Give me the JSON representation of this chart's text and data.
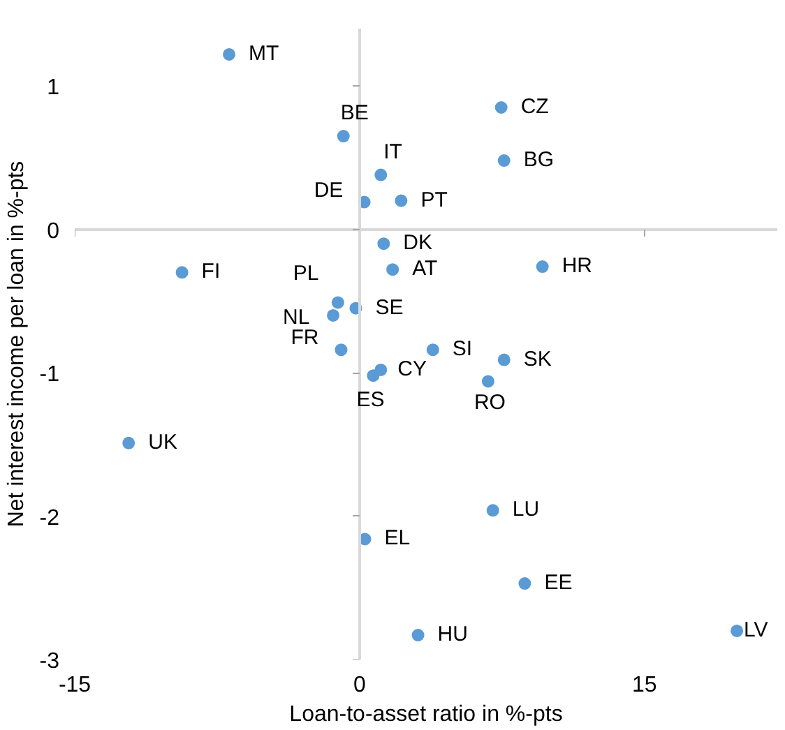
{
  "chart_data": {
    "type": "scatter",
    "xlabel": "Loan-to-asset ratio in %-pts",
    "ylabel": "Net interest income per loan in %-pts",
    "xlim": [
      -15,
      22
    ],
    "ylim": [
      -3,
      1.4
    ],
    "xticks": [
      -15,
      0,
      15
    ],
    "yticks": [
      -3,
      -2,
      -1,
      0,
      1
    ],
    "marker": "circle",
    "series": [
      {
        "color": "#5b9bd5",
        "x": [
          -6.87,
          -0.85,
          7.46,
          1.12,
          7.61,
          0.25,
          2.19,
          1.27,
          -9.35,
          1.74,
          9.63,
          -1.14,
          -1.39,
          -0.2,
          -0.97,
          3.86,
          7.61,
          1.12,
          0.72,
          6.77,
          -12.16,
          7.02,
          0.28,
          8.7,
          3.08,
          19.87
        ],
        "values": [
          1.22,
          0.65,
          0.85,
          0.38,
          0.48,
          0.19,
          0.2,
          -0.1,
          -0.3,
          -0.28,
          -0.26,
          -0.51,
          -0.6,
          -0.55,
          -0.84,
          -0.84,
          -0.91,
          -0.98,
          -1.02,
          -1.06,
          -1.49,
          -1.96,
          -2.16,
          -2.47,
          -2.83,
          -2.8
        ]
      }
    ],
    "annotations": [
      {
        "text": "MT",
        "x": -6.87,
        "y": 1.22
      },
      {
        "text": "BE",
        "x": -0.85,
        "y": 0.65
      },
      {
        "text": "CZ",
        "x": 7.46,
        "y": 0.85
      },
      {
        "text": "IT",
        "x": 1.12,
        "y": 0.38
      },
      {
        "text": "BG",
        "x": 7.61,
        "y": 0.48
      },
      {
        "text": "DE",
        "x": 0.25,
        "y": 0.19
      },
      {
        "text": "PT",
        "x": 2.19,
        "y": 0.2
      },
      {
        "text": "DK",
        "x": 1.27,
        "y": -0.1
      },
      {
        "text": "FI",
        "x": -9.35,
        "y": -0.3
      },
      {
        "text": "AT",
        "x": 1.74,
        "y": -0.28
      },
      {
        "text": "HR",
        "x": 9.63,
        "y": -0.26
      },
      {
        "text": "PL",
        "x": -1.14,
        "y": -0.51
      },
      {
        "text": "NL",
        "x": -1.39,
        "y": -0.6
      },
      {
        "text": "SE",
        "x": -0.2,
        "y": -0.55
      },
      {
        "text": "FR",
        "x": -0.97,
        "y": -0.84
      },
      {
        "text": "SI",
        "x": 3.86,
        "y": -0.84
      },
      {
        "text": "SK",
        "x": 7.61,
        "y": -0.91
      },
      {
        "text": "CY",
        "x": 1.12,
        "y": -0.98
      },
      {
        "text": "ES",
        "x": 0.72,
        "y": -1.02
      },
      {
        "text": "RO",
        "x": 6.77,
        "y": -1.06
      },
      {
        "text": "UK",
        "x": -12.16,
        "y": -1.49
      },
      {
        "text": "LU",
        "x": 7.02,
        "y": -1.96
      },
      {
        "text": "EL",
        "x": 0.28,
        "y": -2.16
      },
      {
        "text": "EE",
        "x": 8.7,
        "y": -2.47
      },
      {
        "text": "HU",
        "x": 3.08,
        "y": -2.83
      },
      {
        "text": "LV",
        "x": 19.87,
        "y": -2.8
      }
    ]
  }
}
